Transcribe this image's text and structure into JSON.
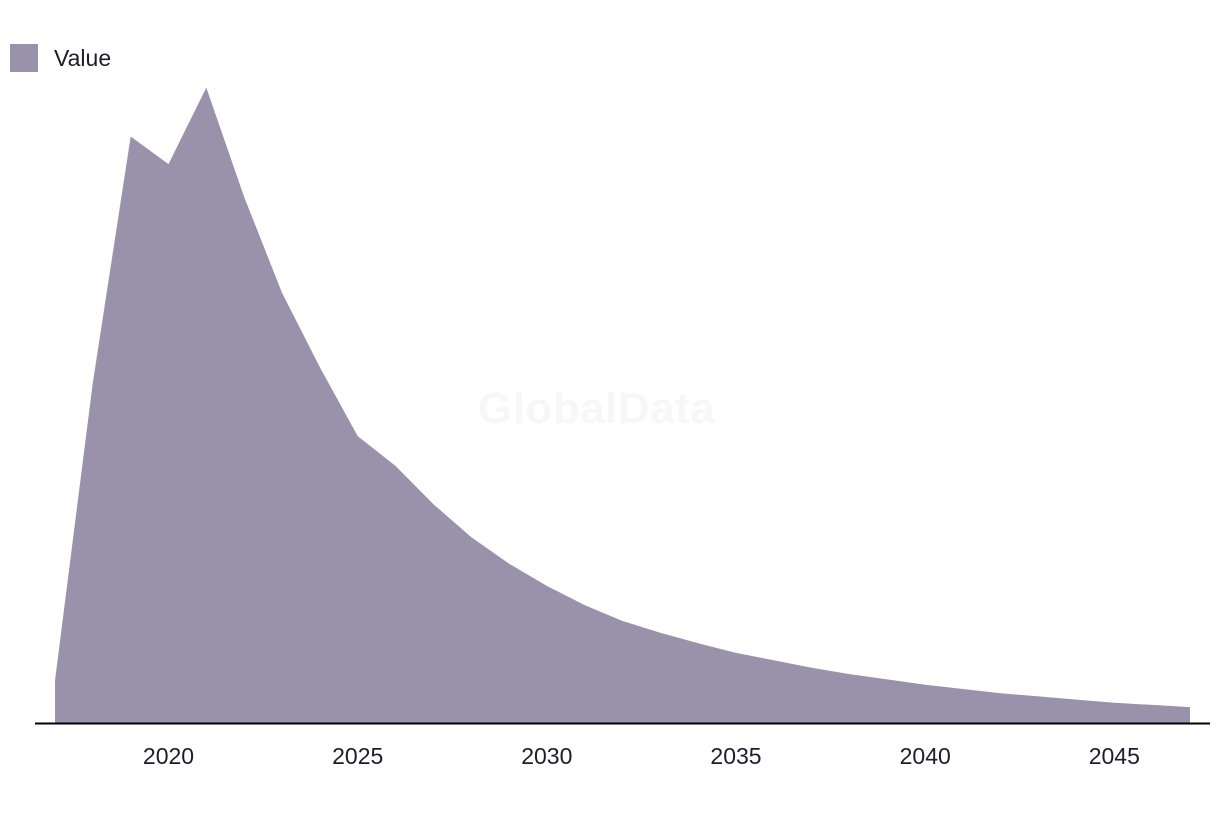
{
  "watermark": "GlobalData",
  "colors": {
    "area": "#9a91aa",
    "axis": "#000000"
  },
  "chart_data": {
    "type": "area",
    "title": "",
    "xlabel": "",
    "ylabel": "",
    "legend": {
      "position": "top-left",
      "entries": [
        "Value"
      ]
    },
    "grid": false,
    "x": [
      2017,
      2018,
      2019,
      2020,
      2021,
      2022,
      2023,
      2024,
      2025,
      2026,
      2027,
      2028,
      2029,
      2030,
      2031,
      2032,
      2033,
      2034,
      2035,
      2036,
      2037,
      2038,
      2039,
      2040,
      2041,
      2042,
      2043,
      2044,
      2045,
      2046,
      2047
    ],
    "series": [
      {
        "name": "Value",
        "values": [
          40,
          320,
          552,
          526,
          598,
          495,
          405,
          335,
          270,
          242,
          206,
          175,
          150,
          129,
          111,
          96,
          85,
          75,
          66,
          59,
          52,
          46,
          41,
          36,
          32,
          28,
          25,
          22,
          19,
          17,
          15
        ]
      }
    ],
    "xlim": [
      2017,
      2047
    ],
    "ylim": [
      0,
      640
    ],
    "xticks": [
      2020,
      2025,
      2030,
      2035,
      2040,
      2045
    ]
  }
}
